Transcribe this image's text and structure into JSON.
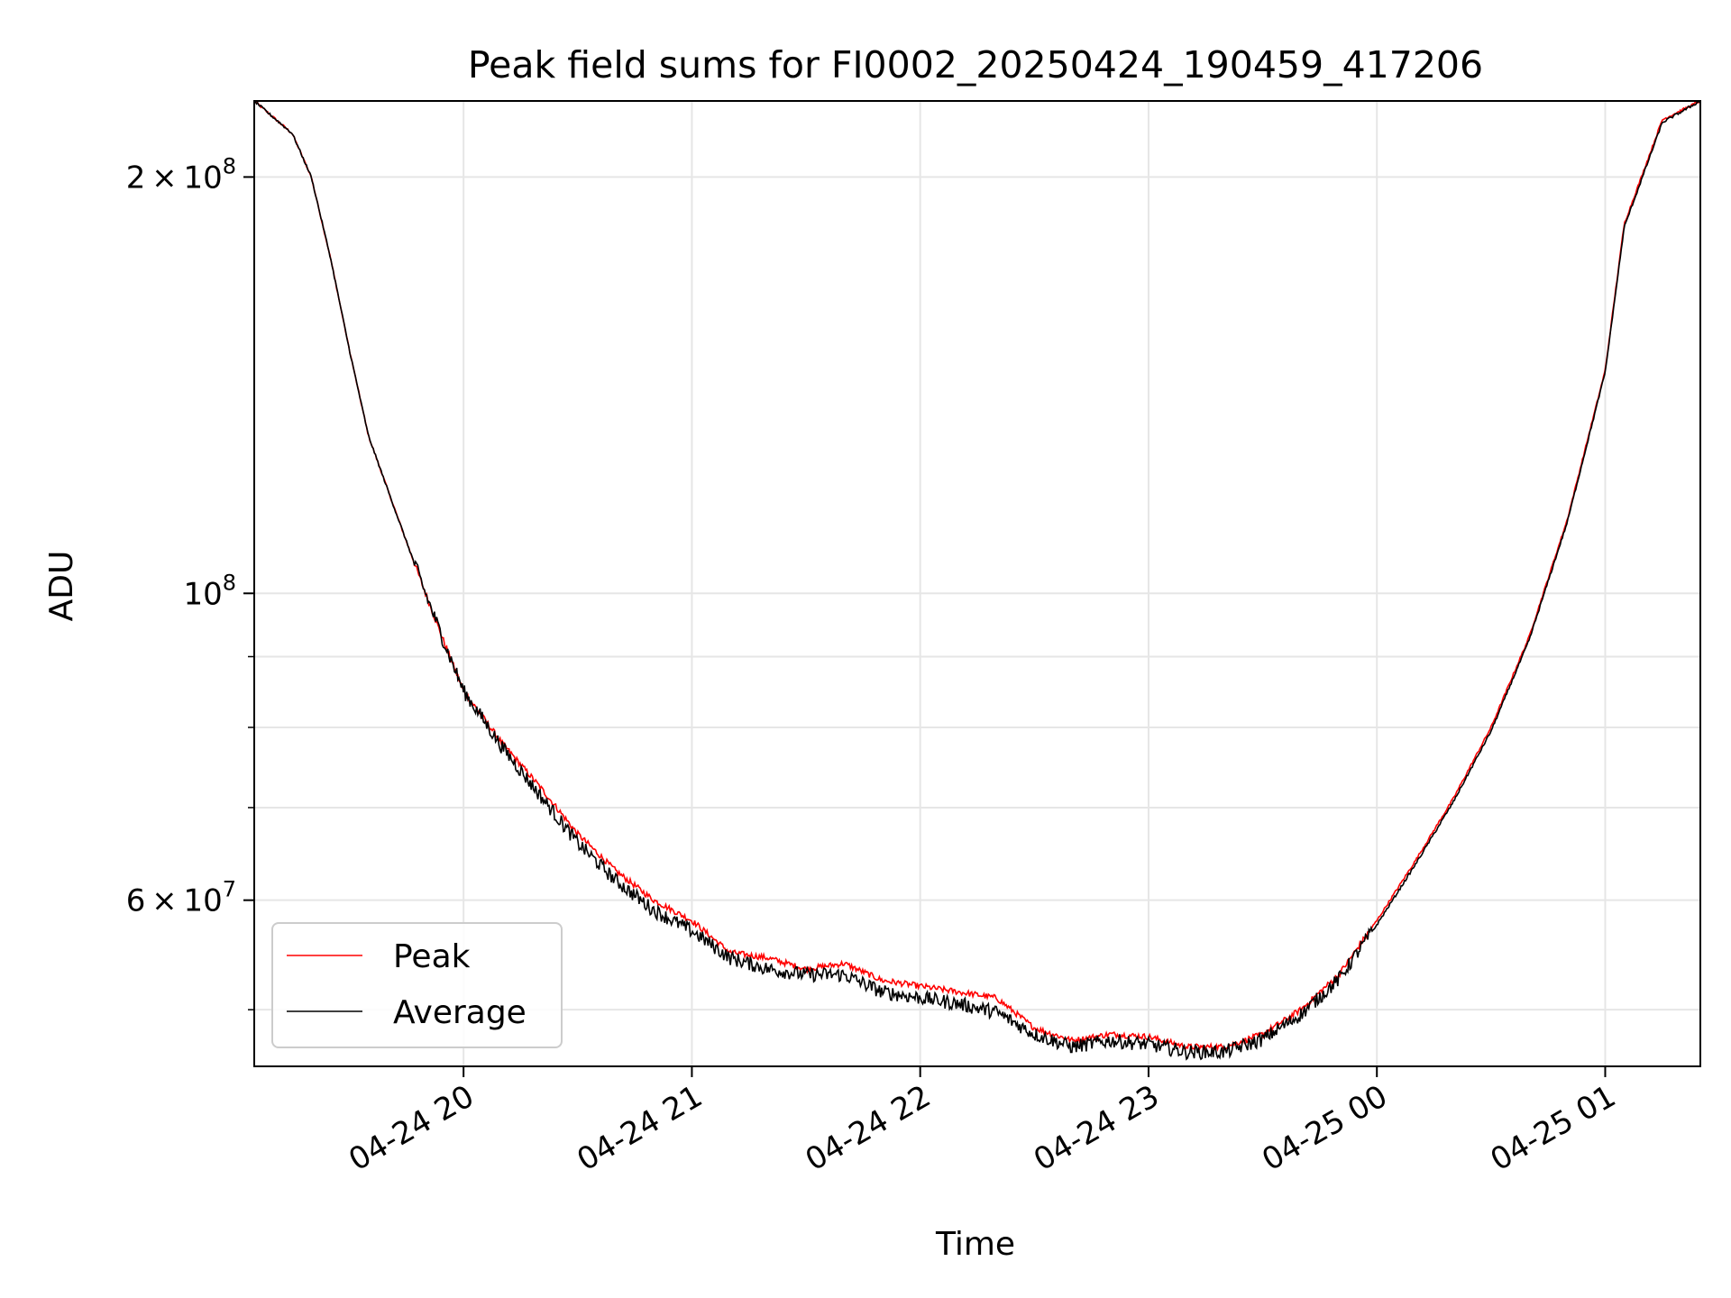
{
  "chart_data": {
    "type": "line",
    "title": "Peak field sums for FI0002_20250424_190459_417206",
    "xlabel": "Time",
    "ylabel": "ADU",
    "yscale": "log",
    "xlim": [
      "2025-04-24 19:05",
      "2025-04-25 01:25"
    ],
    "ylim": [
      45500000,
      227000000
    ],
    "grid": true,
    "legend_position": "lower-left",
    "x_ticks": [
      {
        "value": "2025-04-24 20:00",
        "label": "04-24 20"
      },
      {
        "value": "2025-04-24 21:00",
        "label": "04-24 21"
      },
      {
        "value": "2025-04-24 22:00",
        "label": "04-24 22"
      },
      {
        "value": "2025-04-24 23:00",
        "label": "04-24 23"
      },
      {
        "value": "2025-04-25 00:00",
        "label": "04-25 00"
      },
      {
        "value": "2025-04-25 01:00",
        "label": "04-25 01"
      }
    ],
    "y_major_ticks": [
      {
        "value": 60000000,
        "mantissa": "6",
        "exponent": "7"
      },
      {
        "value": 100000000,
        "mantissa": "",
        "exponent": "8"
      },
      {
        "value": 200000000,
        "mantissa": "2",
        "exponent": "8"
      }
    ],
    "y_minor_ticks": [
      50000000,
      70000000,
      80000000,
      90000000,
      300000000
    ],
    "x": [
      "2025-04-24 19:05",
      "2025-04-24 19:15",
      "2025-04-24 19:20",
      "2025-04-24 19:25",
      "2025-04-24 19:30",
      "2025-04-24 19:35",
      "2025-04-24 19:40",
      "2025-04-24 19:45",
      "2025-04-24 19:50",
      "2025-04-24 19:55",
      "2025-04-24 20:00",
      "2025-04-24 20:10",
      "2025-04-24 20:20",
      "2025-04-24 20:30",
      "2025-04-24 20:40",
      "2025-04-24 20:50",
      "2025-04-24 21:00",
      "2025-04-24 21:10",
      "2025-04-24 21:20",
      "2025-04-24 21:30",
      "2025-04-24 21:40",
      "2025-04-24 21:50",
      "2025-04-24 22:00",
      "2025-04-24 22:10",
      "2025-04-24 22:20",
      "2025-04-24 22:30",
      "2025-04-24 22:40",
      "2025-04-24 22:50",
      "2025-04-24 23:00",
      "2025-04-24 23:10",
      "2025-04-24 23:20",
      "2025-04-24 23:30",
      "2025-04-24 23:40",
      "2025-04-24 23:50",
      "2025-04-25 00:00",
      "2025-04-25 00:10",
      "2025-04-25 00:20",
      "2025-04-25 00:30",
      "2025-04-25 00:40",
      "2025-04-25 00:50",
      "2025-04-25 01:00",
      "2025-04-25 01:05",
      "2025-04-25 01:15",
      "2025-04-25 01:25"
    ],
    "series": [
      {
        "name": "Peak",
        "color": "#ff0000",
        "values": [
          227000000,
          215000000,
          200000000,
          175000000,
          150000000,
          130000000,
          119000000,
          109000000,
          100000000,
          92000000,
          85000000,
          78000000,
          72500000,
          67000000,
          63000000,
          60000000,
          58000000,
          55000000,
          54500000,
          53500000,
          54000000,
          52500000,
          52000000,
          51500000,
          51000000,
          48500000,
          47500000,
          48000000,
          47800000,
          47000000,
          47000000,
          48000000,
          50000000,
          53000000,
          58000000,
          64000000,
          71000000,
          80000000,
          93000000,
          113000000,
          145000000,
          185000000,
          220000000,
          227000000
        ]
      },
      {
        "name": "Average",
        "color": "#000000",
        "values": [
          227000000,
          215000000,
          200000000,
          175000000,
          150000000,
          130000000,
          119000000,
          109000000,
          100000000,
          92000000,
          85000000,
          77500000,
          71500000,
          66000000,
          62000000,
          59000000,
          57000000,
          54500000,
          53500000,
          53000000,
          53000000,
          51500000,
          51000000,
          50500000,
          49800000,
          48000000,
          47000000,
          47500000,
          47200000,
          46600000,
          46600000,
          47600000,
          49600000,
          52600000,
          57600000,
          63600000,
          70600000,
          79500000,
          92500000,
          112500000,
          144500000,
          184000000,
          219000000,
          227000000
        ]
      }
    ]
  }
}
